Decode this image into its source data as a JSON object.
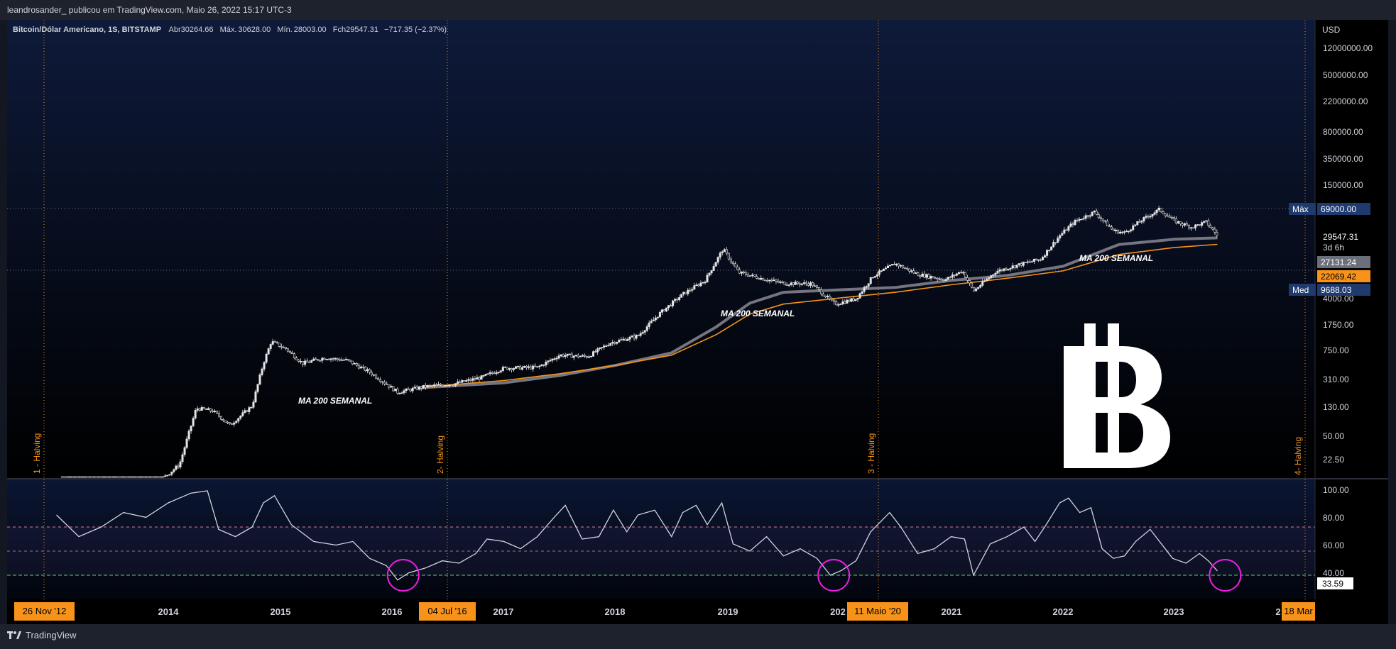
{
  "header": {
    "publisher_line": "leandrosander_ publicou em TradingView.com, Maio 26, 2022 15:17 UTC-3"
  },
  "legend": {
    "symbol": "Bitcoin/Dólar Americano, 1S, BITSTAMP",
    "open_label": "Abr",
    "open": "30264.66",
    "high_label": "Máx.",
    "high": "30628.00",
    "low_label": "Mín.",
    "low": "28003.00",
    "close_label": "Fch",
    "close": "29547.31",
    "change": "−717.35 (−2.37%)"
  },
  "brand": {
    "name": "TradingView"
  },
  "colors": {
    "background_top": "#0e1a3a",
    "background_bottom": "#000000",
    "candle": "#e6e6e6",
    "ma_gray": "#757580",
    "ma_orange": "#f7931a",
    "halving": "#f7931a",
    "rsi_line": "#d1d4dc",
    "rsi_band": "#7e57c2",
    "rsi_30_line": "#4caf50",
    "circle": "#e91ee0",
    "axis_text": "#d1d4dc",
    "badge_blue": "#1e3a6e"
  },
  "chart_data": {
    "type": "candlestick",
    "title": "Bitcoin/Dólar Americano, 1S, BITSTAMP",
    "currency_label": "USD",
    "y_scale": "log",
    "price_ticks": [
      "12000000.00",
      "5000000.00",
      "2200000.00",
      "800000.00",
      "350000.00",
      "150000.00",
      "4000.00",
      "1750.00",
      "750.00",
      "310.00",
      "130.00",
      "50.00",
      "22.50"
    ],
    "x_ticks": [
      "2014",
      "2015",
      "2016",
      "2017",
      "2018",
      "2019",
      "202",
      "2021",
      "2022",
      "2023",
      "2"
    ],
    "halving_dates": [
      "26 Nov '12",
      "04 Jul '16",
      "11 Maio '20",
      "18 Mar"
    ],
    "halving_labels": [
      "1 - Halving",
      "2- Halving",
      "3 - Halving",
      "4- Halving"
    ],
    "price_labels": {
      "max_label": "Máx",
      "max_value": "69000.00",
      "last_price": "29547.31",
      "countdown": "3d 6h",
      "ma_gray_value": "27131.24",
      "ma_orange_value": "22069.42",
      "med_label": "Med",
      "med_value": "9688.03"
    },
    "annotations": [
      "MA 200 SEMANAL",
      "MA 200 SEMANAL",
      "MA 200 SEMANAL"
    ],
    "price_series": [
      {
        "date": "2012.05",
        "price": 5
      },
      {
        "date": "2012.9",
        "price": 11
      },
      {
        "date": "2013.1",
        "price": 20
      },
      {
        "date": "2013.25",
        "price": 120
      },
      {
        "date": "2013.4",
        "price": 110
      },
      {
        "date": "2013.55",
        "price": 70
      },
      {
        "date": "2013.75",
        "price": 130
      },
      {
        "date": "2013.85",
        "price": 500
      },
      {
        "date": "2013.92",
        "price": 1000
      },
      {
        "date": "2014.05",
        "price": 800
      },
      {
        "date": "2014.2",
        "price": 500
      },
      {
        "date": "2014.4",
        "price": 600
      },
      {
        "date": "2014.6",
        "price": 550
      },
      {
        "date": "2014.8",
        "price": 380
      },
      {
        "date": "2015.05",
        "price": 200
      },
      {
        "date": "2015.3",
        "price": 240
      },
      {
        "date": "2015.55",
        "price": 260
      },
      {
        "date": "2015.8",
        "price": 320
      },
      {
        "date": "2016.0",
        "price": 430
      },
      {
        "date": "2016.3",
        "price": 440
      },
      {
        "date": "2016.5",
        "price": 650
      },
      {
        "date": "2016.75",
        "price": 620
      },
      {
        "date": "2016.95",
        "price": 960
      },
      {
        "date": "2017.2",
        "price": 1200
      },
      {
        "date": "2017.4",
        "price": 2500
      },
      {
        "date": "2017.6",
        "price": 4500
      },
      {
        "date": "2017.8",
        "price": 7000
      },
      {
        "date": "2017.96",
        "price": 19000
      },
      {
        "date": "2018.1",
        "price": 9000
      },
      {
        "date": "2018.3",
        "price": 7500
      },
      {
        "date": "2018.5",
        "price": 6400
      },
      {
        "date": "2018.75",
        "price": 6300
      },
      {
        "date": "2018.96",
        "price": 3300
      },
      {
        "date": "2019.15",
        "price": 3900
      },
      {
        "date": "2019.3",
        "price": 8000
      },
      {
        "date": "2019.5",
        "price": 12000
      },
      {
        "date": "2019.7",
        "price": 8500
      },
      {
        "date": "2019.95",
        "price": 7200
      },
      {
        "date": "2020.1",
        "price": 9500
      },
      {
        "date": "2020.2",
        "price": 5000
      },
      {
        "date": "2020.4",
        "price": 9300
      },
      {
        "date": "2020.6",
        "price": 11500
      },
      {
        "date": "2020.8",
        "price": 13800
      },
      {
        "date": "2020.97",
        "price": 29000
      },
      {
        "date": "2021.1",
        "price": 45000
      },
      {
        "date": "2021.28",
        "price": 62000
      },
      {
        "date": "2021.45",
        "price": 34000
      },
      {
        "date": "2021.55",
        "price": 32000
      },
      {
        "date": "2021.7",
        "price": 47000
      },
      {
        "date": "2021.86",
        "price": 67000
      },
      {
        "date": "2022.0",
        "price": 46000
      },
      {
        "date": "2022.15",
        "price": 38000
      },
      {
        "date": "2022.28",
        "price": 45000
      },
      {
        "date": "2022.38",
        "price": 29547
      }
    ],
    "ma_gray_series": [
      {
        "date": "2015.25",
        "price": 230
      },
      {
        "date": "2016.0",
        "price": 270
      },
      {
        "date": "2016.5",
        "price": 340
      },
      {
        "date": "2017.0",
        "price": 470
      },
      {
        "date": "2017.5",
        "price": 700
      },
      {
        "date": "2017.9",
        "price": 1600
      },
      {
        "date": "2018.2",
        "price": 3400
      },
      {
        "date": "2018.5",
        "price": 4800
      },
      {
        "date": "2019.0",
        "price": 5200
      },
      {
        "date": "2019.5",
        "price": 5600
      },
      {
        "date": "2020.0",
        "price": 7000
      },
      {
        "date": "2020.5",
        "price": 8200
      },
      {
        "date": "2021.0",
        "price": 11000
      },
      {
        "date": "2021.5",
        "price": 22000
      },
      {
        "date": "2022.0",
        "price": 26000
      },
      {
        "date": "2022.38",
        "price": 27131
      }
    ],
    "ma_orange_series": [
      {
        "date": "2015.25",
        "price": 235
      },
      {
        "date": "2016.0",
        "price": 290
      },
      {
        "date": "2016.5",
        "price": 360
      },
      {
        "date": "2017.0",
        "price": 470
      },
      {
        "date": "2017.5",
        "price": 650
      },
      {
        "date": "2017.9",
        "price": 1250
      },
      {
        "date": "2018.2",
        "price": 2400
      },
      {
        "date": "2018.5",
        "price": 3300
      },
      {
        "date": "2019.0",
        "price": 4000
      },
      {
        "date": "2019.5",
        "price": 4800
      },
      {
        "date": "2020.0",
        "price": 6100
      },
      {
        "date": "2020.5",
        "price": 7500
      },
      {
        "date": "2021.0",
        "price": 9500
      },
      {
        "date": "2021.5",
        "price": 16000
      },
      {
        "date": "2022.0",
        "price": 20000
      },
      {
        "date": "2022.38",
        "price": 22069
      }
    ],
    "rsi": {
      "ticks": [
        "100.00",
        "80.00",
        "60.00",
        "40.00"
      ],
      "current_value": "33.59",
      "levels": [
        70,
        50,
        30
      ],
      "ylim": [
        20,
        100
      ],
      "series": [
        {
          "date": "2012.0",
          "value": 80
        },
        {
          "date": "2012.2",
          "value": 62
        },
        {
          "date": "2012.4",
          "value": 70
        },
        {
          "date": "2012.6",
          "value": 82
        },
        {
          "date": "2012.8",
          "value": 78
        },
        {
          "date": "2013.0",
          "value": 90
        },
        {
          "date": "2013.2",
          "value": 98
        },
        {
          "date": "2013.35",
          "value": 100
        },
        {
          "date": "2013.45",
          "value": 68
        },
        {
          "date": "2013.6",
          "value": 62
        },
        {
          "date": "2013.75",
          "value": 70
        },
        {
          "date": "2013.85",
          "value": 90
        },
        {
          "date": "2013.95",
          "value": 96
        },
        {
          "date": "2014.1",
          "value": 72
        },
        {
          "date": "2014.3",
          "value": 58
        },
        {
          "date": "2014.5",
          "value": 55
        },
        {
          "date": "2014.65",
          "value": 58
        },
        {
          "date": "2014.8",
          "value": 44
        },
        {
          "date": "2014.95",
          "value": 38
        },
        {
          "date": "2015.05",
          "value": 26
        },
        {
          "date": "2015.15",
          "value": 32
        },
        {
          "date": "2015.3",
          "value": 36
        },
        {
          "date": "2015.45",
          "value": 42
        },
        {
          "date": "2015.6",
          "value": 40
        },
        {
          "date": "2015.75",
          "value": 48
        },
        {
          "date": "2015.85",
          "value": 60
        },
        {
          "date": "2016.0",
          "value": 58
        },
        {
          "date": "2016.15",
          "value": 52
        },
        {
          "date": "2016.3",
          "value": 62
        },
        {
          "date": "2016.45",
          "value": 78
        },
        {
          "date": "2016.55",
          "value": 88
        },
        {
          "date": "2016.7",
          "value": 60
        },
        {
          "date": "2016.85",
          "value": 62
        },
        {
          "date": "2016.98",
          "value": 84
        },
        {
          "date": "2017.1",
          "value": 66
        },
        {
          "date": "2017.2",
          "value": 80
        },
        {
          "date": "2017.35",
          "value": 84
        },
        {
          "date": "2017.5",
          "value": 62
        },
        {
          "date": "2017.6",
          "value": 82
        },
        {
          "date": "2017.72",
          "value": 88
        },
        {
          "date": "2017.82",
          "value": 72
        },
        {
          "date": "2017.95",
          "value": 90
        },
        {
          "date": "2018.05",
          "value": 56
        },
        {
          "date": "2018.2",
          "value": 50
        },
        {
          "date": "2018.35",
          "value": 62
        },
        {
          "date": "2018.5",
          "value": 46
        },
        {
          "date": "2018.65",
          "value": 52
        },
        {
          "date": "2018.8",
          "value": 44
        },
        {
          "date": "2018.92",
          "value": 30
        },
        {
          "date": "2019.02",
          "value": 34
        },
        {
          "date": "2019.15",
          "value": 42
        },
        {
          "date": "2019.28",
          "value": 66
        },
        {
          "date": "2019.45",
          "value": 82
        },
        {
          "date": "2019.55",
          "value": 70
        },
        {
          "date": "2019.7",
          "value": 48
        },
        {
          "date": "2019.85",
          "value": 52
        },
        {
          "date": "2020.0",
          "value": 62
        },
        {
          "date": "2020.12",
          "value": 60
        },
        {
          "date": "2020.2",
          "value": 30
        },
        {
          "date": "2020.35",
          "value": 56
        },
        {
          "date": "2020.5",
          "value": 62
        },
        {
          "date": "2020.65",
          "value": 70
        },
        {
          "date": "2020.75",
          "value": 58
        },
        {
          "date": "2020.85",
          "value": 72
        },
        {
          "date": "2020.97",
          "value": 90
        },
        {
          "date": "2021.05",
          "value": 94
        },
        {
          "date": "2021.15",
          "value": 82
        },
        {
          "date": "2021.25",
          "value": 86
        },
        {
          "date": "2021.35",
          "value": 52
        },
        {
          "date": "2021.45",
          "value": 44
        },
        {
          "date": "2021.55",
          "value": 46
        },
        {
          "date": "2021.65",
          "value": 58
        },
        {
          "date": "2021.78",
          "value": 68
        },
        {
          "date": "2021.88",
          "value": 56
        },
        {
          "date": "2021.98",
          "value": 44
        },
        {
          "date": "2022.1",
          "value": 40
        },
        {
          "date": "2022.22",
          "value": 48
        },
        {
          "date": "2022.3",
          "value": 42
        },
        {
          "date": "2022.38",
          "value": 33.59
        }
      ],
      "oversold_markers": [
        "2015.1",
        "2018.95",
        "2022.45"
      ]
    }
  }
}
